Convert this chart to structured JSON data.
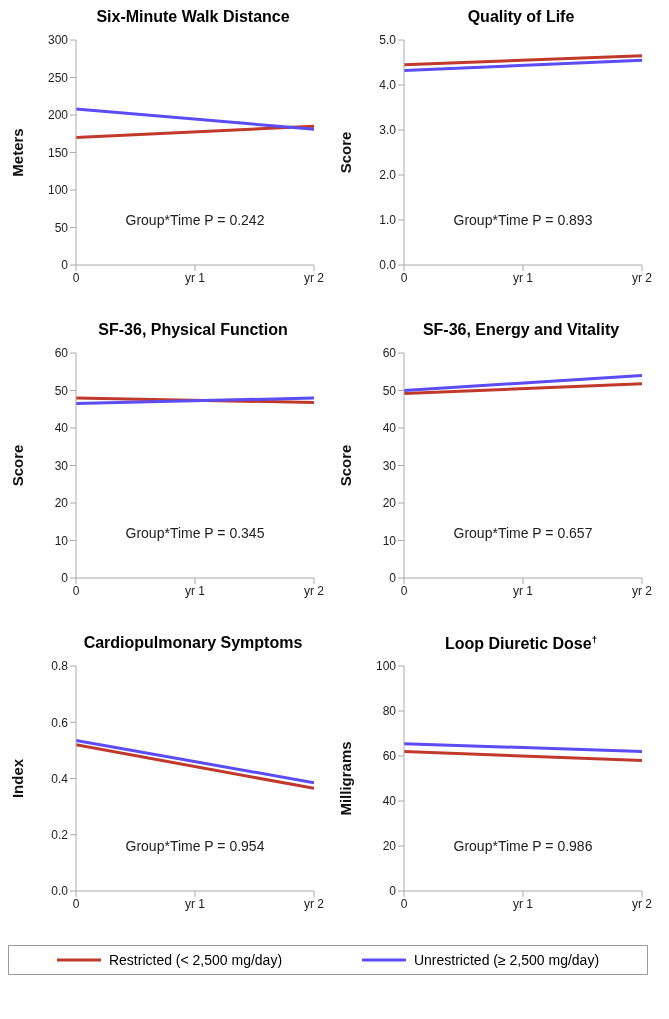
{
  "chart_data": [
    {
      "type": "line",
      "title": "Six-Minute Walk Distance",
      "ylabel": "Meters",
      "categories": [
        "0",
        "yr 1",
        "yr 2"
      ],
      "ylim": [
        0,
        300
      ],
      "yticks": [
        0,
        50,
        100,
        150,
        200,
        250,
        300
      ],
      "annotations": [
        "Group*Time P = 0.242"
      ],
      "grid": false,
      "legend": false,
      "marker": "none",
      "series": [
        {
          "color": "#c0392b",
          "values": [
            170,
            null,
            185
          ]
        },
        {
          "color": "#5b4cf5",
          "values": [
            208,
            null,
            181
          ]
        }
      ]
    },
    {
      "type": "line",
      "title": "Quality of Life",
      "ylabel": "Score",
      "categories": [
        "0",
        "yr 1",
        "yr 2"
      ],
      "ylim": [
        0,
        5
      ],
      "yticks": [
        {
          "value": 0,
          "label": "0.0"
        },
        {
          "value": 1,
          "label": "1.0"
        },
        {
          "value": 2,
          "label": "2.0"
        },
        {
          "value": 3,
          "label": "3.0"
        },
        {
          "value": 4,
          "label": "4.0"
        },
        {
          "value": 5,
          "label": "5.0"
        }
      ],
      "annotations": [
        "Group*Time P = 0.893"
      ],
      "grid": false,
      "legend": false,
      "marker": "none",
      "series": [
        {
          "color": "#c0392b",
          "values": [
            4.45,
            null,
            4.65
          ]
        },
        {
          "color": "#5b4cf5",
          "values": [
            4.32,
            null,
            4.55
          ]
        }
      ]
    },
    {
      "type": "line",
      "title": "SF-36, Physical Function",
      "ylabel": "Score",
      "categories": [
        "0",
        "yr 1",
        "yr 2"
      ],
      "ylim": [
        0,
        60
      ],
      "yticks": [
        0,
        10,
        20,
        30,
        40,
        50,
        60
      ],
      "annotations": [
        "Group*Time P = 0.345"
      ],
      "grid": false,
      "legend": false,
      "marker": "none",
      "series": [
        {
          "color": "#c0392b",
          "values": [
            48,
            null,
            46.8
          ]
        },
        {
          "color": "#5b4cf5",
          "values": [
            46.5,
            null,
            48
          ]
        }
      ]
    },
    {
      "type": "line",
      "title": "SF-36, Energy and Vitality",
      "ylabel": "Score",
      "categories": [
        "0",
        "yr 1",
        "yr 2"
      ],
      "ylim": [
        0,
        60
      ],
      "yticks": [
        0,
        10,
        20,
        30,
        40,
        50,
        60
      ],
      "annotations": [
        "Group*Time P = 0.657"
      ],
      "grid": false,
      "legend": false,
      "marker": "none",
      "series": [
        {
          "color": "#c0392b",
          "values": [
            49.2,
            null,
            51.8
          ]
        },
        {
          "color": "#5b4cf5",
          "values": [
            50,
            null,
            54
          ]
        }
      ]
    },
    {
      "type": "line",
      "title": "Cardiopulmonary Symptoms",
      "ylabel": "Index",
      "categories": [
        "0",
        "yr 1",
        "yr 2"
      ],
      "ylim": [
        0,
        0.8
      ],
      "yticks": [
        {
          "value": 0,
          "label": "0.0"
        },
        0.2,
        0.4,
        0.6,
        0.8
      ],
      "annotations": [
        "Group*Time P = 0.954"
      ],
      "grid": false,
      "legend": false,
      "marker": "none",
      "series": [
        {
          "color": "#c0392b",
          "values": [
            0.52,
            null,
            0.365
          ]
        },
        {
          "color": "#5b4cf5",
          "values": [
            0.535,
            null,
            0.385
          ]
        }
      ]
    },
    {
      "type": "line",
      "title": "Loop Diuretic Dose$^{†}$",
      "ylabel": "Milligrams",
      "categories": [
        "0",
        "yr 1",
        "yr 2"
      ],
      "ylim": [
        0,
        100
      ],
      "yticks": [
        0,
        20,
        40,
        60,
        80,
        100
      ],
      "annotations": [
        "Group*Time P = 0.986"
      ],
      "grid": false,
      "legend": "bottom",
      "marker": "none",
      "series": [
        {
          "name": "Restricted (< 2,500 mg/day)",
          "color": "#c0392b",
          "values": [
            62,
            null,
            58
          ]
        },
        {
          "name": "Unrestricted (≥ 2,500 mg/day)",
          "color": "#5b4cf5",
          "values": [
            65.5,
            null,
            62
          ]
        }
      ]
    }
  ]
}
